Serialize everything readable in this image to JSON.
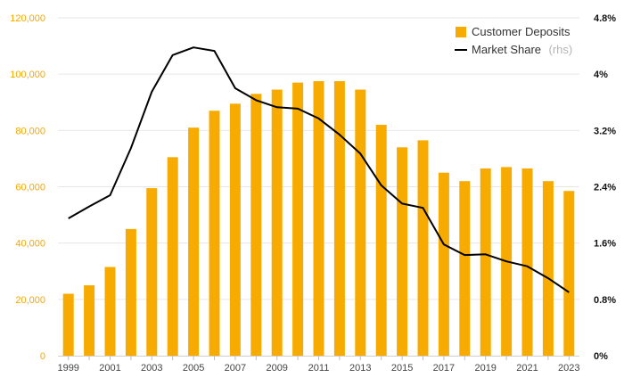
{
  "chart_data": {
    "type": "bar+line",
    "title": "",
    "categories": [
      "1999",
      "2000",
      "2001",
      "2002",
      "2003",
      "2004",
      "2005",
      "2006",
      "2007",
      "2008",
      "2009",
      "2010",
      "2011",
      "2012",
      "2013",
      "2014",
      "2015",
      "2016",
      "2017",
      "2018",
      "2019",
      "2020",
      "2021",
      "2022",
      "2023"
    ],
    "x_tick_labels": [
      "1999",
      "2001",
      "2003",
      "2005",
      "2007",
      "2009",
      "2011",
      "2013",
      "2015",
      "2017",
      "2019",
      "2021",
      "2023"
    ],
    "series": [
      {
        "name": "Customer Deposits",
        "type": "bar",
        "axis": "left",
        "color": "#f7ab00",
        "values": [
          22000,
          25000,
          31500,
          45000,
          59500,
          70500,
          81000,
          87000,
          89500,
          93000,
          94500,
          97000,
          97500,
          97500,
          94500,
          82000,
          74000,
          76500,
          65000,
          62000,
          66500,
          67000,
          66500,
          62000,
          58500
        ]
      },
      {
        "name": "Market Share",
        "name_suffix": "(rhs)",
        "type": "line",
        "axis": "right",
        "color": "#000000",
        "values": [
          1.95,
          2.12,
          2.28,
          2.95,
          3.75,
          4.27,
          4.38,
          4.33,
          3.8,
          3.63,
          3.53,
          3.51,
          3.37,
          3.14,
          2.87,
          2.42,
          2.16,
          2.1,
          1.58,
          1.43,
          1.44,
          1.34,
          1.27,
          1.1,
          0.9
        ]
      }
    ],
    "y_left": {
      "ylim": [
        0,
        120000
      ],
      "ticks": [
        "0",
        "20,000",
        "40,000",
        "60,000",
        "80,000",
        "100,000",
        "120,000"
      ],
      "tick_color": "#f5a800"
    },
    "y_right": {
      "ylim": [
        0,
        4.8
      ],
      "ticks": [
        "0%",
        "0.8%",
        "1.6%",
        "2.4%",
        "3.2%",
        "4%",
        "4.8%"
      ]
    },
    "grid": true,
    "legend": "top-right"
  }
}
